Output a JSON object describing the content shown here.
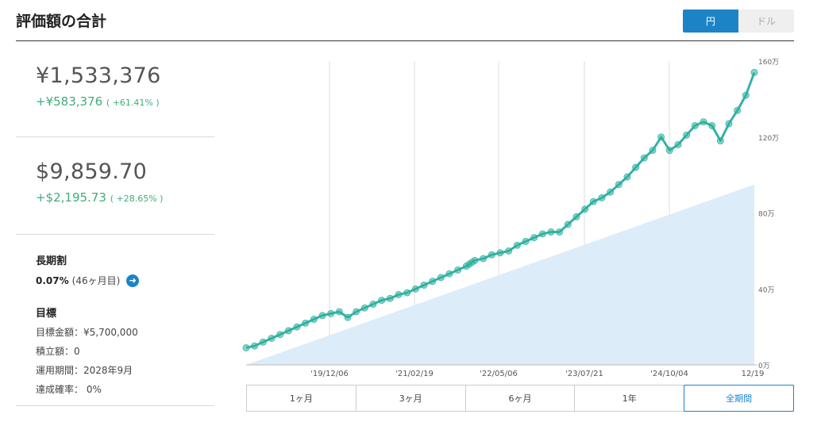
{
  "header": {
    "title": "評価額の合計",
    "currency_options": [
      {
        "label": "円",
        "active": true
      },
      {
        "label": "ドル",
        "active": false
      }
    ]
  },
  "yen": {
    "amount": "¥1,533,376",
    "gain": "+¥583,376",
    "gain_pct": "( +61.41% )"
  },
  "usd": {
    "amount": "$9,859.70",
    "gain": "+$2,195.73",
    "gain_pct": "( +28.65% )"
  },
  "longterm": {
    "label": "長期割",
    "rate": "0.07%",
    "detail": "(46ヶ月目)"
  },
  "goal": {
    "label": "目標",
    "items": [
      "目標金額：¥5,700,000",
      "積立額：0",
      "運用期間：2028年9月",
      "達成確率： 0%"
    ]
  },
  "periods": [
    {
      "label": "1ヶ月",
      "active": false
    },
    {
      "label": "3ヶ月",
      "active": false
    },
    {
      "label": "6ヶ月",
      "active": false
    },
    {
      "label": "1年",
      "active": false
    },
    {
      "label": "全期間",
      "active": true
    }
  ],
  "colors": {
    "accent": "#1c84c6",
    "gain": "#3fae7a",
    "line": "#2bb39a",
    "area": "#dcecf8"
  },
  "chart_data": {
    "type": "line",
    "x_tick_labels": [
      "'19/12/06",
      "'21/02/19",
      "'22/05/06",
      "'23/07/21",
      "'24/10/04",
      "12/19"
    ],
    "y_tick_labels": [
      "0万",
      "40万",
      "80万",
      "120万",
      "160万"
    ],
    "ylim": [
      0,
      160
    ],
    "unit": "万",
    "series": [
      {
        "type": "line",
        "x": [
          0,
          3,
          6,
          9,
          12,
          15,
          18,
          21,
          24,
          27,
          30,
          33,
          36,
          39,
          42,
          45,
          48,
          51,
          54,
          57,
          60,
          63,
          66,
          69,
          72,
          75,
          78,
          79,
          80,
          81,
          84,
          87,
          90,
          93,
          96,
          99,
          102,
          105,
          108,
          111,
          114,
          117,
          120,
          123,
          126,
          129,
          132,
          135,
          138,
          141,
          144,
          147,
          150,
          153,
          156,
          159,
          162,
          165,
          168,
          171,
          174,
          177,
          180
        ],
        "values": [
          9,
          10,
          12,
          14,
          16,
          18,
          20,
          22,
          24,
          26,
          27,
          28,
          25,
          28,
          30,
          32,
          34,
          35,
          37,
          38,
          40,
          42,
          44,
          46,
          48,
          50,
          52,
          53,
          54,
          55,
          56,
          58,
          59,
          60,
          63,
          65,
          67,
          69,
          70,
          70,
          74,
          78,
          82,
          86,
          88,
          91,
          95,
          99,
          104,
          109,
          113,
          120,
          113,
          116,
          121,
          126,
          128,
          126,
          118,
          127,
          134,
          142,
          154
        ]
      },
      {
        "type": "area",
        "x": [
          0,
          180
        ],
        "values": [
          0,
          95
        ]
      }
    ]
  }
}
